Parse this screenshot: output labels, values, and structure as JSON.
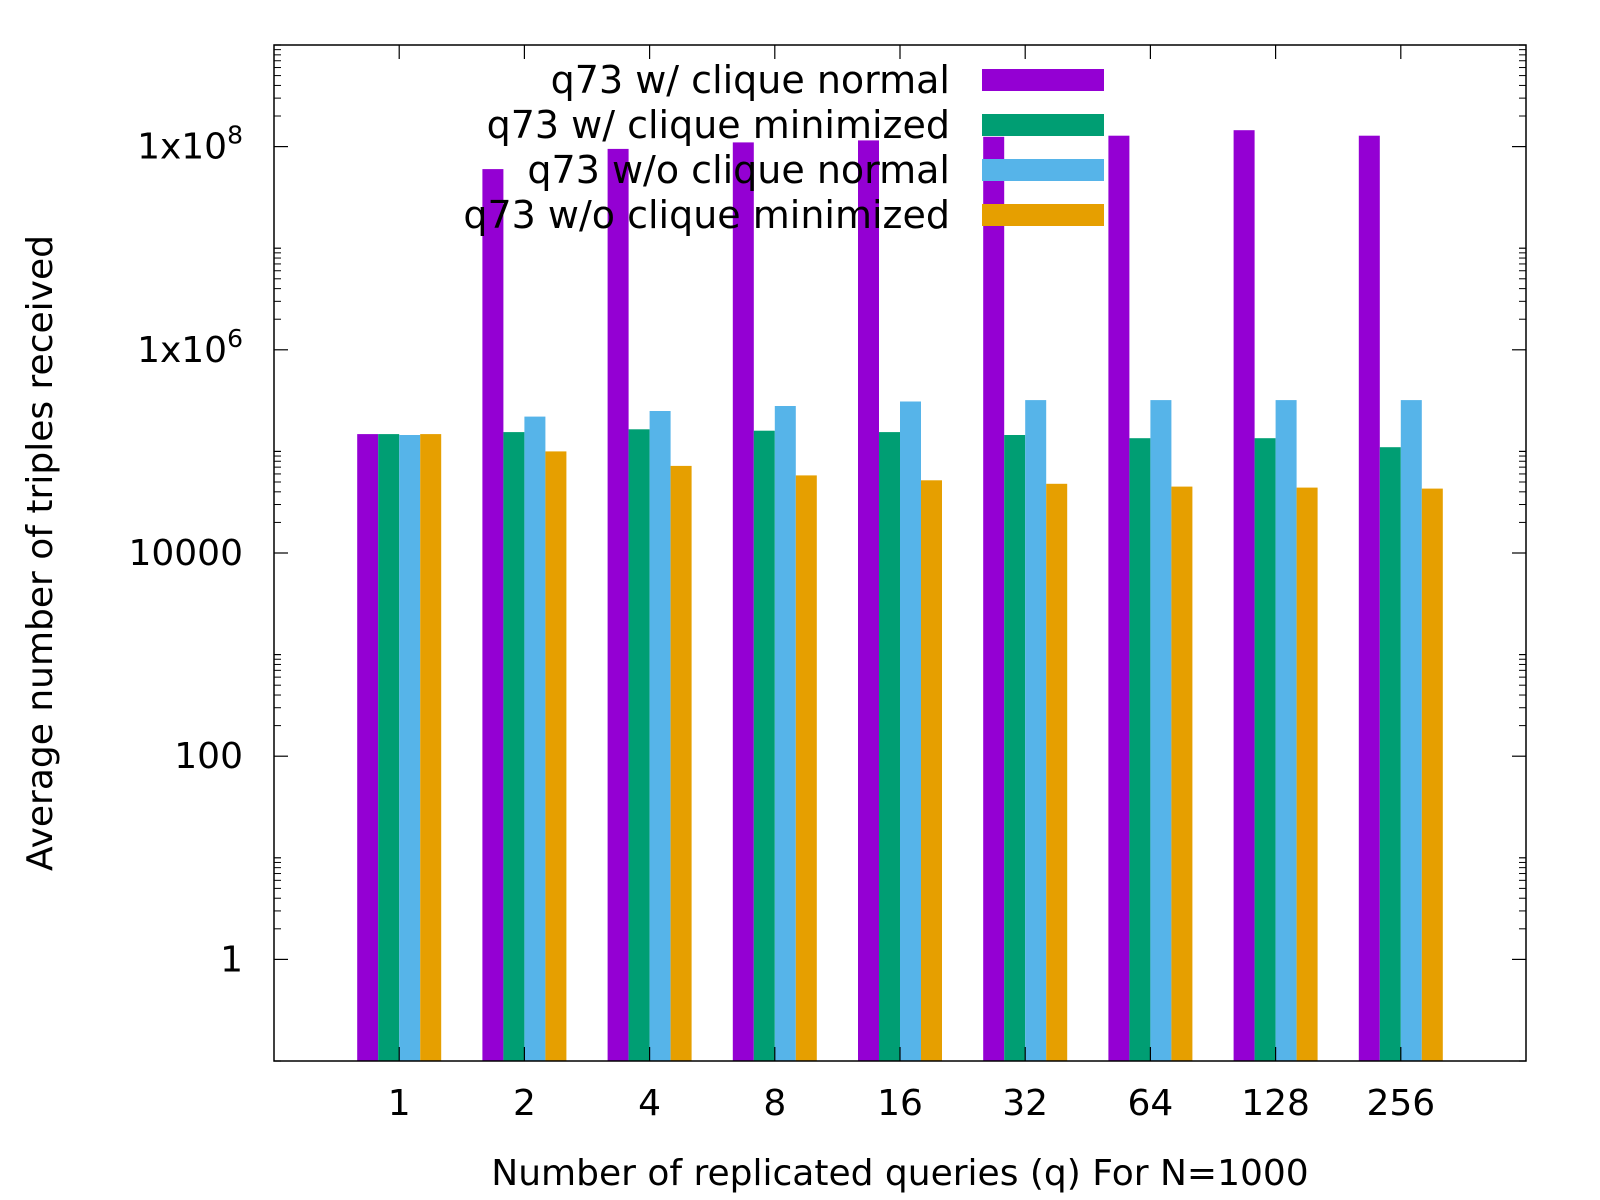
{
  "chart_data": {
    "type": "bar",
    "title": "",
    "xlabel": "Number of replicated queries (q) For N=1000",
    "ylabel": "Average number of triples received",
    "yscale": "log",
    "ylim": [
      0.1,
      1000000000
    ],
    "categories": [
      "1",
      "2",
      "4",
      "8",
      "16",
      "32",
      "64",
      "128",
      "256"
    ],
    "y_ticks": [
      {
        "value": 1,
        "base": "1",
        "exp": ""
      },
      {
        "value": 100,
        "base": "100",
        "exp": ""
      },
      {
        "value": 10000,
        "base": "10000",
        "exp": ""
      },
      {
        "value": 1000000,
        "base": "1x10",
        "exp": "6"
      },
      {
        "value": 100000000,
        "base": "1x10",
        "exp": "8"
      }
    ],
    "legend_position": "top-right",
    "grid": false,
    "series": [
      {
        "name": "q73 w/ clique normal",
        "color": "#9400d3",
        "values": [
          148000,
          60000000,
          95000000,
          110000000,
          115000000,
          125000000,
          128000000,
          145000000,
          128000000
        ]
      },
      {
        "name": "q73 w/ clique minimized",
        "color": "#009e73",
        "values": [
          148000,
          155000,
          165000,
          160000,
          155000,
          145000,
          135000,
          135000,
          110000
        ]
      },
      {
        "name": "q73 w/o clique normal",
        "color": "#56b4e9",
        "values": [
          145000,
          220000,
          250000,
          280000,
          310000,
          320000,
          320000,
          320000,
          320000
        ]
      },
      {
        "name": "q73 w/o clique minimized",
        "color": "#e69f00",
        "values": [
          148000,
          100000,
          72000,
          58000,
          52000,
          48000,
          45000,
          44000,
          43000
        ]
      }
    ]
  }
}
